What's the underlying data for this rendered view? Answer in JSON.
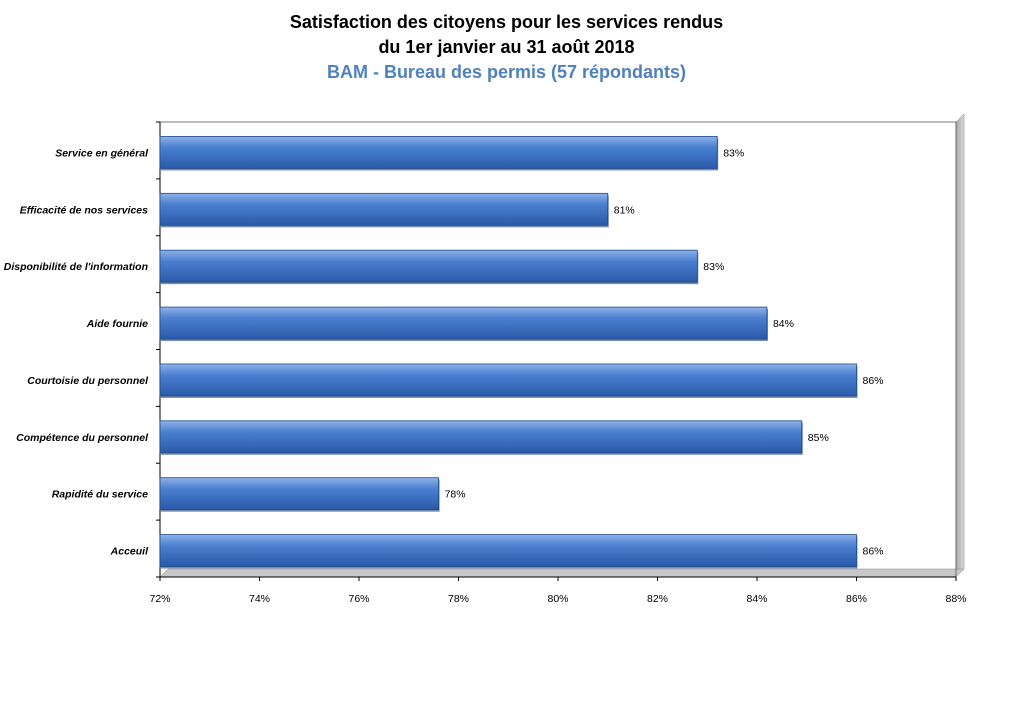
{
  "chart_data": {
    "type": "bar",
    "orientation": "horizontal",
    "title": [
      "Satisfaction des citoyens pour les services rendus",
      "du 1er janvier au 31 août 2018"
    ],
    "subtitle": "BAM - Bureau des permis (57 répondants)",
    "categories": [
      "Service en général",
      "Efficacité de nos services",
      "Disponibilité de l'information",
      "Aide fournie",
      "Courtoisie du personnel",
      "Compétence du personnel",
      "Rapidité du service",
      "Acceuil"
    ],
    "values": [
      83.2,
      81.0,
      82.8,
      84.2,
      86.0,
      84.9,
      77.6,
      86.0
    ],
    "data_labels": [
      "83%",
      "81%",
      "83%",
      "84%",
      "86%",
      "85%",
      "78%",
      "86%"
    ],
    "xlim": [
      72,
      88
    ],
    "xticks": [
      72,
      74,
      76,
      78,
      80,
      82,
      84,
      86,
      88
    ],
    "xtick_labels": [
      "72%",
      "74%",
      "76%",
      "78%",
      "80%",
      "82%",
      "84%",
      "86%",
      "88%"
    ],
    "xlabel": "",
    "ylabel": "",
    "grid": false,
    "legend": "none",
    "bar_color": "#3a6fbf",
    "subtitle_color": "#4f81bd"
  }
}
